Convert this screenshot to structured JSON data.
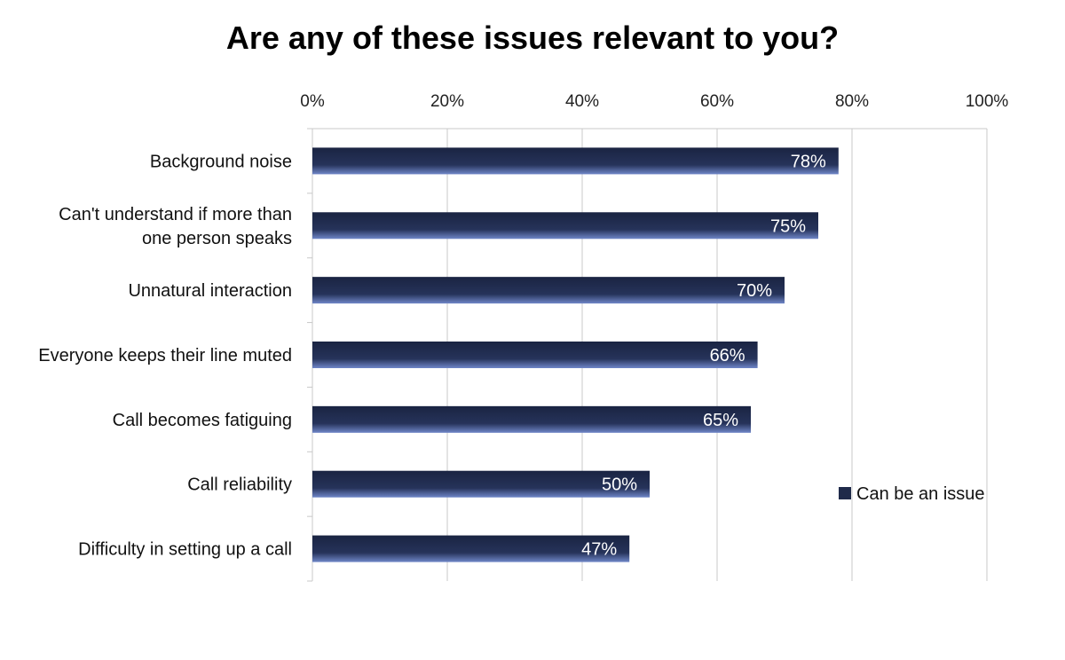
{
  "chart_data": {
    "type": "bar",
    "orientation": "horizontal",
    "title": "Are any of these issues relevant to you?",
    "categories": [
      [
        "Background noise"
      ],
      [
        "Can't understand if more than",
        "one person speaks"
      ],
      [
        "Unnatural interaction"
      ],
      [
        "Everyone keeps their line muted"
      ],
      [
        "Call becomes fatiguing"
      ],
      [
        "Call reliability"
      ],
      [
        "Difficulty in setting up a call"
      ]
    ],
    "series": [
      {
        "name": "Can be an issue",
        "values": [
          78,
          75,
          70,
          66,
          65,
          50,
          47
        ],
        "data_labels": [
          "78%",
          "75%",
          "70%",
          "66%",
          "65%",
          "50%",
          "47%"
        ],
        "color": "#1f2a4a"
      }
    ],
    "xlim": [
      0,
      100
    ],
    "x_ticks": [
      0,
      20,
      40,
      60,
      80,
      100
    ],
    "x_tick_labels": [
      "0%",
      "20%",
      "40%",
      "60%",
      "80%",
      "100%"
    ],
    "x_axis_position": "top",
    "grid": true,
    "legend_position": "right"
  }
}
